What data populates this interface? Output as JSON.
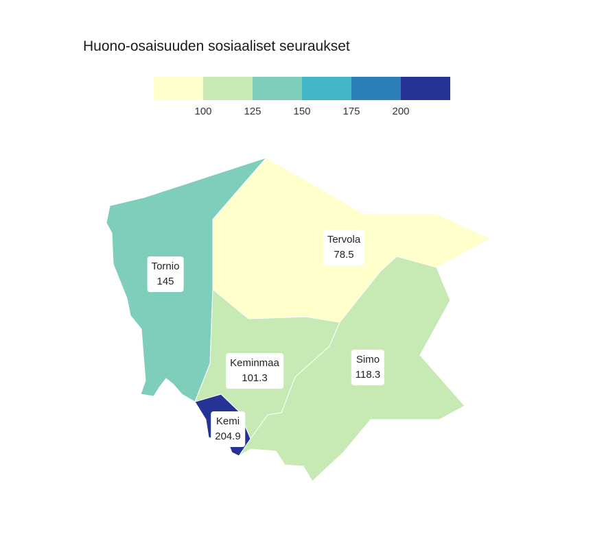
{
  "title": "Huono-osaisuuden sosiaaliset seuraukset",
  "legend": {
    "bins": [
      {
        "color": "#ffffcc"
      },
      {
        "color": "#c7e9b4"
      },
      {
        "color": "#7fcdbb"
      },
      {
        "color": "#41b6c4"
      },
      {
        "color": "#2c7fb8"
      },
      {
        "color": "#253494"
      }
    ],
    "ticks": [
      "100",
      "125",
      "150",
      "175",
      "200"
    ]
  },
  "regions": [
    {
      "id": "tornio",
      "name": "Tornio",
      "value": "145",
      "color": "#7fcdbb"
    },
    {
      "id": "tervola",
      "name": "Tervola",
      "value": "78.5",
      "color": "#ffffcc"
    },
    {
      "id": "keminmaa",
      "name": "Keminmaa",
      "value": "101.3",
      "color": "#c7e9b4"
    },
    {
      "id": "simo",
      "name": "Simo",
      "value": "118.3",
      "color": "#c7e9b4"
    },
    {
      "id": "kemi",
      "name": "Kemi",
      "value": "204.9",
      "color": "#253494"
    }
  ]
}
